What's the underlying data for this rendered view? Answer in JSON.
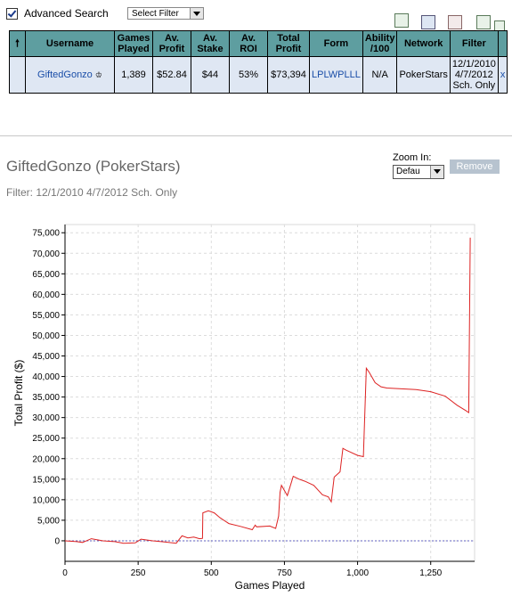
{
  "advanced_search": {
    "label": "Advanced Search",
    "checked": true
  },
  "filter_select": {
    "value": "Select Filter"
  },
  "table": {
    "headers": [
      "Username",
      "Games Played",
      "Av. Profit",
      "Av. Stake",
      "Av. ROI",
      "Total Profit",
      "Form",
      "Ability /100",
      "Network",
      "Filter"
    ],
    "row": {
      "username": "GiftedGonzo",
      "games_played": "1,389",
      "av_profit": "$52.84",
      "av_stake": "$44",
      "av_roi": "53%",
      "total_profit": "$73,394",
      "form": "LPLWPLLL",
      "ability": "N/A",
      "network": "PokerStars",
      "filter": "12/1/2010 4/7/2012 Sch. Only",
      "remove": "x"
    }
  },
  "panel": {
    "title": "GiftedGonzo (PokerStars)",
    "subtitle": "Filter: 12/1/2010 4/7/2012 Sch. Only",
    "zoom_label": "Zoom In:",
    "zoom_value": "Defau",
    "remove_label": "Remove"
  },
  "colors": {
    "header_bg": "#5e9ea0",
    "row_bg": "#dfe7f3",
    "line": "#dd2222",
    "zero_line": "#6060c0"
  },
  "chart_data": {
    "type": "line",
    "xlabel": "Games Played",
    "ylabel": "Total Profit ($)",
    "xlim": [
      0,
      1400
    ],
    "ylim": [
      -5000,
      77000
    ],
    "xticks": [
      0,
      250,
      500,
      750,
      1000,
      1250
    ],
    "xtick_labels": [
      "0",
      "250",
      "500",
      "750",
      "1,000",
      "1,250"
    ],
    "yticks": [
      0,
      5000,
      10000,
      15000,
      20000,
      25000,
      30000,
      35000,
      40000,
      45000,
      50000,
      55000,
      60000,
      65000,
      70000,
      75000
    ],
    "ytick_labels": [
      "0",
      "5,000",
      "10,000",
      "15,000",
      "20,000",
      "25,000",
      "30,000",
      "35,000",
      "40,000",
      "45,000",
      "50,000",
      "55,000",
      "60,000",
      "65,000",
      "70,000",
      "75,000"
    ],
    "grid": true,
    "series": [
      {
        "x": [
          0,
          40,
          60,
          90,
          130,
          170,
          200,
          240,
          260,
          300,
          340,
          380,
          400,
          420,
          440,
          460,
          470,
          471,
          490,
          510,
          530,
          560,
          600,
          640,
          650,
          655,
          700,
          720,
          730,
          735,
          740,
          760,
          780,
          800,
          820,
          850,
          880,
          900,
          910,
          920,
          940,
          950,
          960,
          1000,
          1020,
          1030,
          1040,
          1060,
          1080,
          1100,
          1150,
          1200,
          1250,
          1300,
          1340,
          1370,
          1380,
          1385
        ],
        "y": [
          0,
          -200,
          -400,
          500,
          0,
          -200,
          -600,
          -500,
          400,
          0,
          -300,
          -600,
          1200,
          700,
          900,
          500,
          600,
          6800,
          7300,
          6800,
          5600,
          4200,
          3500,
          2700,
          3800,
          3400,
          3600,
          3000,
          6000,
          11800,
          13500,
          11000,
          15700,
          15000,
          14500,
          13500,
          11200,
          10700,
          9500,
          15500,
          16800,
          22500,
          22100,
          20800,
          20500,
          42000,
          41000,
          38500,
          37500,
          37200,
          37000,
          36800,
          36300,
          35200,
          33000,
          31700,
          31200,
          73800
        ]
      }
    ]
  }
}
